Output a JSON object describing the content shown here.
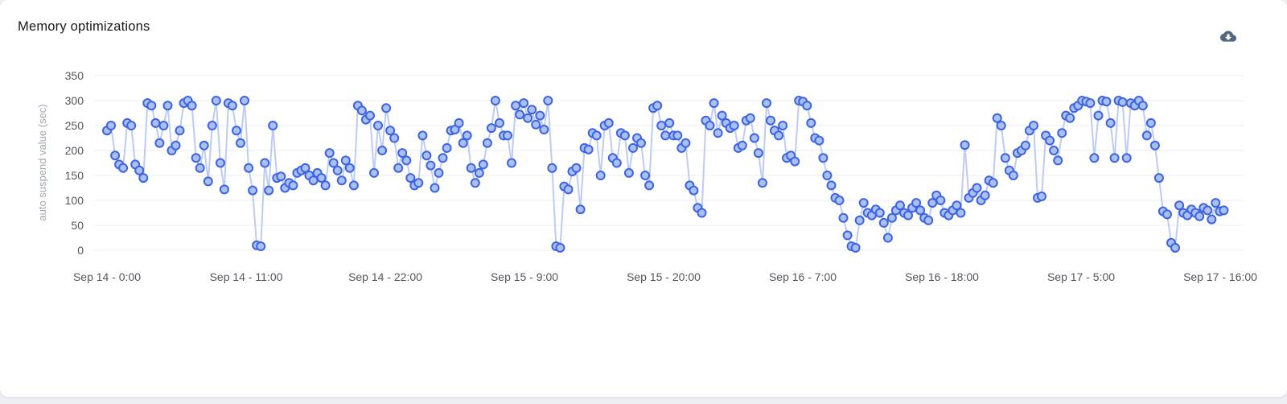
{
  "panel": {
    "title": "Memory optimizations"
  },
  "toolbar": {
    "download_icon": "cloud-download"
  },
  "colors": {
    "page_background": "#edeff3",
    "card_background": "#ffffff",
    "title_text": "#17191d",
    "tick_text": "#53565c",
    "axis_title_text": "#a3a8b0",
    "gridline": "#f0f1f4",
    "download_icon": "#52677e"
  },
  "chart_data": {
    "type": "line",
    "title": "Memory optimizations",
    "xlabel": "",
    "ylabel": "auto suspend value (sec)",
    "ylim": [
      0,
      350
    ],
    "y_ticks": [
      0,
      50,
      100,
      150,
      200,
      250,
      300,
      350
    ],
    "x_ticks": [
      {
        "label": "Sep 14 - 0:00",
        "hour": 0
      },
      {
        "label": "Sep 14 - 11:00",
        "hour": 11
      },
      {
        "label": "Sep 14 - 22:00",
        "hour": 22
      },
      {
        "label": "Sep 15 - 9:00",
        "hour": 33
      },
      {
        "label": "Sep 15 - 20:00",
        "hour": 44
      },
      {
        "label": "Sep 16 - 7:00",
        "hour": 55
      },
      {
        "label": "Sep 16 - 18:00",
        "hour": 66
      },
      {
        "label": "Sep 17 - 5:00",
        "hour": 77
      },
      {
        "label": "Sep 17 - 16:00",
        "hour": 88
      }
    ],
    "total_hours": 88.6,
    "points_evenly_spaced": true,
    "grid": "horizontal",
    "legend": "none",
    "series": [
      {
        "name": "auto suspend value (sec)",
        "marker_fill": "#abc0f2",
        "marker_stroke": "#3c63e3",
        "line_color": "#bdccf4",
        "values": [
          240,
          250,
          190,
          172,
          165,
          255,
          250,
          172,
          160,
          145,
          295,
          290,
          255,
          215,
          250,
          290,
          200,
          210,
          240,
          295,
          300,
          290,
          185,
          165,
          210,
          138,
          250,
          300,
          175,
          122,
          295,
          290,
          240,
          215,
          300,
          165,
          120,
          10,
          8,
          175,
          120,
          250,
          145,
          148,
          125,
          135,
          130,
          155,
          160,
          165,
          150,
          140,
          155,
          145,
          130,
          195,
          175,
          160,
          140,
          180,
          165,
          130,
          290,
          280,
          262,
          270,
          155,
          250,
          200,
          285,
          240,
          225,
          165,
          195,
          180,
          145,
          130,
          135,
          230,
          190,
          170,
          125,
          155,
          185,
          205,
          240,
          242,
          255,
          215,
          230,
          165,
          135,
          155,
          172,
          215,
          245,
          300,
          255,
          230,
          230,
          175,
          290,
          272,
          295,
          265,
          282,
          252,
          270,
          242,
          300,
          165,
          8,
          5,
          128,
          122,
          158,
          165,
          82,
          205,
          202,
          235,
          230,
          150,
          250,
          255,
          185,
          175,
          235,
          230,
          155,
          205,
          225,
          215,
          150,
          130,
          285,
          290,
          250,
          230,
          255,
          230,
          230,
          205,
          215,
          130,
          120,
          85,
          75,
          260,
          250,
          295,
          235,
          270,
          255,
          245,
          250,
          205,
          210,
          260,
          265,
          225,
          195,
          135,
          295,
          260,
          240,
          230,
          250,
          185,
          190,
          178,
          300,
          298,
          290,
          255,
          225,
          220,
          185,
          150,
          130,
          105,
          100,
          65,
          30,
          8,
          5,
          60,
          95,
          75,
          70,
          82,
          75,
          55,
          25,
          65,
          80,
          90,
          75,
          70,
          85,
          95,
          80,
          65,
          60,
          95,
          110,
          100,
          75,
          70,
          80,
          90,
          75,
          211,
          105,
          115,
          125,
          100,
          110,
          140,
          135,
          265,
          250,
          185,
          160,
          150,
          195,
          200,
          210,
          240,
          250,
          105,
          108,
          230,
          220,
          200,
          180,
          235,
          270,
          265,
          285,
          290,
          300,
          298,
          295,
          185,
          270,
          300,
          298,
          255,
          185,
          300,
          297,
          185,
          295,
          290,
          300,
          290,
          230,
          255,
          210,
          145,
          78,
          72,
          15,
          5,
          90,
          75,
          70,
          82,
          75,
          68,
          85,
          80,
          62,
          95,
          78,
          80,
          80
        ]
      }
    ]
  }
}
